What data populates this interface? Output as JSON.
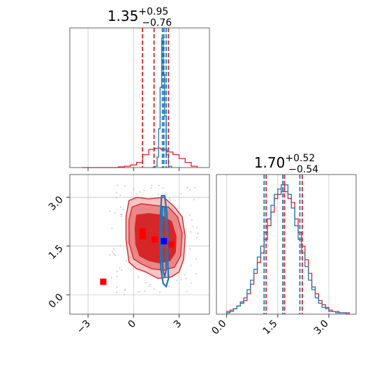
{
  "chart_data": [
    {
      "panel": "top-left",
      "type": "histogram",
      "title_main": "1.35",
      "title_sup": "+0.95",
      "title_sub": "−0.76",
      "xlim": [
        -4.2,
        5.0
      ],
      "x_ticks": [
        -3,
        0,
        3
      ],
      "grid": true,
      "series": [
        {
          "name": "",
          "color": "#d62728",
          "bin_edges": [
            -3.4,
            -3.0,
            -2.6,
            -2.2,
            -1.8,
            -1.4,
            -1.0,
            -0.6,
            -0.2,
            0.2,
            0.6,
            1.0,
            1.4,
            1.8,
            2.2,
            2.6,
            3.0,
            3.4,
            3.8,
            4.2
          ],
          "counts": [
            0.0,
            0.0,
            0.0,
            0.0,
            0.0,
            0.0,
            0.005,
            0.01,
            0.02,
            0.04,
            0.1,
            0.14,
            0.15,
            0.14,
            0.12,
            0.1,
            0.07,
            0.04,
            0.01
          ],
          "quantiles": [
            0.59,
            1.35,
            2.3
          ]
        },
        {
          "name": "",
          "color": "#1f77b4",
          "bin_edges": [
            1.2,
            1.4,
            1.55,
            1.65,
            1.75,
            1.85,
            1.95,
            2.05,
            2.15,
            2.3,
            2.5
          ],
          "counts": [
            0.0,
            0.01,
            0.08,
            0.3,
            0.62,
            1.0,
            0.72,
            0.4,
            0.1,
            0.01
          ],
          "quantiles": [
            1.9,
            2.0,
            2.15
          ]
        }
      ]
    },
    {
      "panel": "bottom-right",
      "type": "histogram",
      "title_main": "1.70",
      "title_sup": "+0.52",
      "title_sub": "−0.54",
      "xlim": [
        -0.3,
        3.8
      ],
      "x_ticks": [
        0.0,
        1.5,
        3.0
      ],
      "x_tick_labels": [
        "0.0",
        "1.5",
        "3.0"
      ],
      "grid": true,
      "series": [
        {
          "name": "",
          "color": "#d62728",
          "bin_edges": [
            0.0,
            0.1,
            0.2,
            0.3,
            0.4,
            0.5,
            0.6,
            0.7,
            0.8,
            0.9,
            1.0,
            1.1,
            1.2,
            1.3,
            1.4,
            1.5,
            1.6,
            1.7,
            1.8,
            1.9,
            2.0,
            2.1,
            2.2,
            2.3,
            2.4,
            2.5,
            2.6,
            2.7,
            2.8,
            2.9,
            3.0,
            3.1,
            3.2,
            3.3,
            3.4,
            3.5,
            3.6
          ],
          "counts": [
            0.02,
            0.03,
            0.04,
            0.06,
            0.08,
            0.1,
            0.15,
            0.22,
            0.3,
            0.38,
            0.45,
            0.55,
            0.65,
            0.75,
            0.85,
            0.88,
            0.95,
            0.9,
            0.85,
            0.82,
            0.7,
            0.6,
            0.5,
            0.4,
            0.3,
            0.2,
            0.15,
            0.1,
            0.07,
            0.05,
            0.03,
            0.02,
            0.02,
            0.01,
            0.01,
            0.01
          ],
          "quantiles": [
            1.16,
            1.7,
            2.22
          ]
        },
        {
          "name": "",
          "color": "#1f77b4",
          "bin_edges": [
            0.0,
            0.1,
            0.2,
            0.3,
            0.4,
            0.5,
            0.6,
            0.7,
            0.8,
            0.9,
            1.0,
            1.1,
            1.2,
            1.3,
            1.4,
            1.5,
            1.6,
            1.7,
            1.8,
            1.9,
            2.0,
            2.1,
            2.2,
            2.3,
            2.4,
            2.5,
            2.6,
            2.7,
            2.8,
            2.9,
            3.0,
            3.1,
            3.2,
            3.3,
            3.4,
            3.5,
            3.6
          ],
          "counts": [
            0.01,
            0.02,
            0.04,
            0.06,
            0.09,
            0.12,
            0.18,
            0.25,
            0.33,
            0.42,
            0.5,
            0.6,
            0.7,
            0.8,
            0.88,
            0.92,
            0.9,
            0.95,
            0.88,
            0.78,
            0.65,
            0.55,
            0.45,
            0.35,
            0.25,
            0.18,
            0.12,
            0.08,
            0.05,
            0.04,
            0.02,
            0.02,
            0.01,
            0.01,
            0.01,
            0.0
          ],
          "quantiles": [
            1.1,
            1.65,
            2.15
          ]
        }
      ]
    },
    {
      "panel": "bottom-left",
      "type": "contour",
      "xlim": [
        -4.2,
        5.0
      ],
      "ylim": [
        -0.6,
        3.7
      ],
      "x_ticks": [
        -3,
        0,
        3
      ],
      "y_ticks": [
        0.0,
        1.5,
        3.0
      ],
      "y_tick_labels": [
        "0.0",
        "1.5",
        "3.0"
      ],
      "grid": true,
      "red_contours": [
        {
          "level": "outer",
          "fill": "#f4c5c5",
          "points": [
            [
              -0.3,
              2.9
            ],
            [
              0.2,
              3.0
            ],
            [
              1.0,
              2.95
            ],
            [
              2.0,
              3.0
            ],
            [
              2.7,
              2.7
            ],
            [
              3.2,
              2.4
            ],
            [
              3.4,
              1.8
            ],
            [
              3.3,
              1.1
            ],
            [
              3.0,
              0.7
            ],
            [
              2.5,
              0.55
            ],
            [
              1.6,
              0.5
            ],
            [
              0.8,
              0.7
            ],
            [
              0.2,
              0.8
            ],
            [
              -0.3,
              1.0
            ],
            [
              -0.5,
              1.7
            ],
            [
              -0.5,
              2.4
            ]
          ]
        },
        {
          "level": "mid",
          "fill": "#eb8686",
          "points": [
            [
              -0.1,
              2.7
            ],
            [
              0.5,
              2.8
            ],
            [
              1.4,
              2.75
            ],
            [
              2.3,
              2.7
            ],
            [
              2.9,
              2.4
            ],
            [
              3.2,
              1.9
            ],
            [
              3.1,
              1.2
            ],
            [
              2.7,
              0.85
            ],
            [
              2.0,
              0.75
            ],
            [
              1.2,
              0.8
            ],
            [
              0.5,
              0.95
            ],
            [
              0.0,
              1.1
            ],
            [
              -0.3,
              1.6
            ],
            [
              -0.3,
              2.3
            ]
          ]
        },
        {
          "level": "inner",
          "fill": "#d62728",
          "points": [
            [
              0.2,
              2.45
            ],
            [
              1.0,
              2.5
            ],
            [
              1.8,
              2.45
            ],
            [
              2.5,
              2.25
            ],
            [
              2.8,
              1.8
            ],
            [
              2.75,
              1.3
            ],
            [
              2.4,
              1.05
            ],
            [
              1.7,
              0.98
            ],
            [
              1.0,
              1.05
            ],
            [
              0.4,
              1.2
            ],
            [
              0.15,
              1.55
            ],
            [
              0.1,
              2.05
            ]
          ]
        }
      ],
      "blue_contours": [
        {
          "points": [
            [
              1.85,
              3.05
            ],
            [
              2.05,
              3.05
            ],
            [
              2.2,
              2.5
            ],
            [
              2.25,
              1.8
            ],
            [
              2.25,
              1.1
            ],
            [
              2.3,
              0.5
            ],
            [
              2.15,
              0.25
            ],
            [
              1.95,
              0.35
            ],
            [
              1.8,
              0.8
            ],
            [
              1.75,
              1.5
            ],
            [
              1.75,
              2.3
            ]
          ]
        },
        {
          "points": [
            [
              1.9,
              2.7
            ],
            [
              2.05,
              2.7
            ],
            [
              2.12,
              2.1
            ],
            [
              2.12,
              1.4
            ],
            [
              2.15,
              0.8
            ],
            [
              2.05,
              0.55
            ],
            [
              1.95,
              0.7
            ],
            [
              1.88,
              1.2
            ],
            [
              1.85,
              1.9
            ]
          ]
        }
      ],
      "red_markers": [
        [
          0.6,
          1.95
        ],
        [
          0.6,
          1.8
        ],
        [
          1.4,
          1.7
        ],
        [
          2.5,
          1.55
        ],
        [
          -2.0,
          0.4
        ]
      ],
      "blue_markers": [
        [
          2.0,
          1.65
        ]
      ]
    }
  ]
}
